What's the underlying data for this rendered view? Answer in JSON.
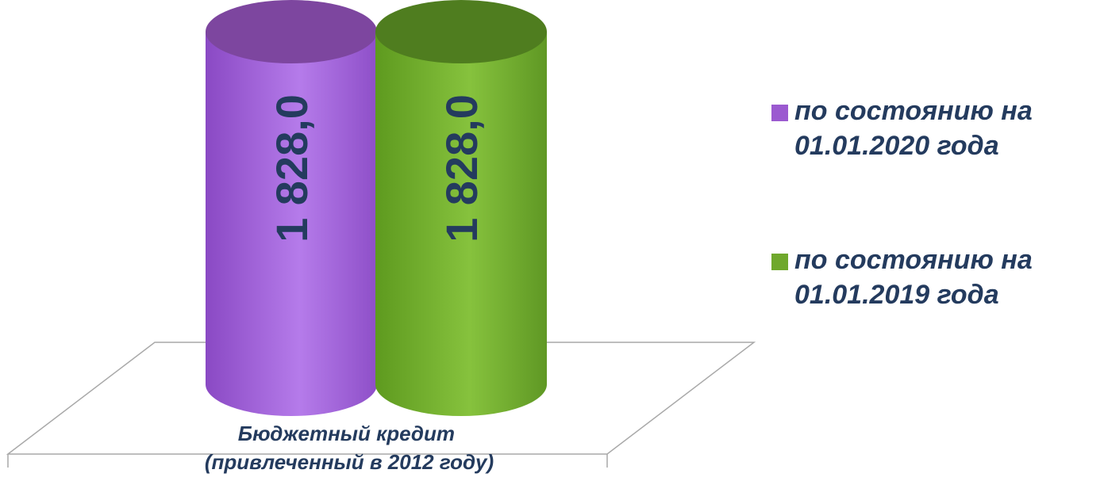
{
  "chart_data": {
    "type": "bar",
    "categories": [
      "Бюджетный кредит\n(привлеченный в 2012 году)"
    ],
    "series": [
      {
        "name": "по состоянию на\n01.01.2020 года",
        "values": [
          1828.0
        ],
        "label": "1 828,0",
        "color": "#9b5ad0"
      },
      {
        "name": "по состоянию на\n01.01.2019 года",
        "values": [
          1828.0
        ],
        "label": "1 828,0",
        "color": "#6fa82c"
      }
    ],
    "category_label_lines": [
      "Бюджетный кредит",
      "(привлеченный в 2012 году)"
    ],
    "ylim": [
      0,
      1828.0
    ],
    "grid": false,
    "legend_position": "right"
  }
}
